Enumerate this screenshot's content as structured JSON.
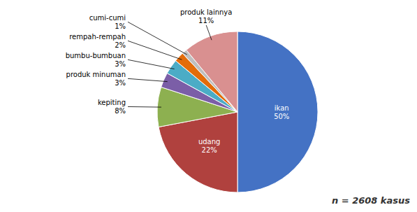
{
  "chart_data": {
    "type": "pie",
    "categories": [
      "ikan",
      "udang",
      "kepiting",
      "produk minuman",
      "bumbu-bumbuan",
      "rempah-rempah",
      "cumi-cumi",
      "produk lainnya"
    ],
    "values": [
      50,
      22,
      8,
      3,
      3,
      2,
      1,
      11
    ],
    "value_labels": [
      "50%",
      "22%",
      "8%",
      "3%",
      "3%",
      "2%",
      "1%",
      "11%"
    ],
    "colors": [
      "#4472c4",
      "#b0413e",
      "#8db050",
      "#7b5ea7",
      "#4bacc6",
      "#e36c0a",
      "#bfbfbf",
      "#d99090"
    ],
    "data_labels": true,
    "annotations": [
      "n = 2608 kasus"
    ]
  }
}
